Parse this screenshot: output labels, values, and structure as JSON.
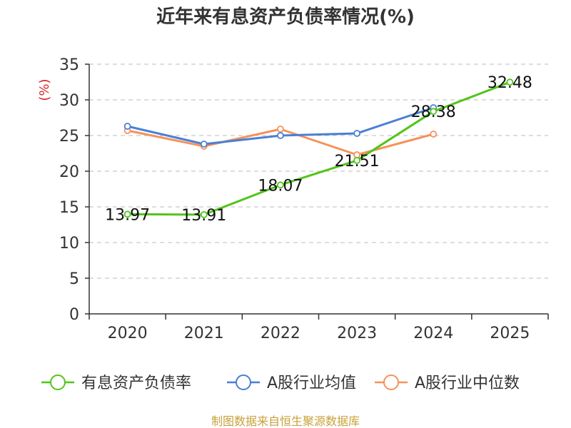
{
  "chart_data": {
    "type": "line",
    "title": "近年来有息资产负债率情况(%)",
    "xlabel": "",
    "ylabel": "(%)",
    "categories": [
      "2020",
      "2021",
      "2022",
      "2023",
      "2024",
      "2025"
    ],
    "ylim": [
      0,
      35
    ],
    "yticks": [
      0,
      5,
      10,
      15,
      20,
      25,
      30,
      35
    ],
    "grid": true,
    "legend_position": "bottom",
    "series": [
      {
        "name": "有息资产负债率",
        "color": "#52c41a",
        "values": [
          13.97,
          13.91,
          18.07,
          21.51,
          28.38,
          32.48
        ],
        "labels": [
          "13.97",
          "13.91",
          "18.07",
          "21.51",
          "28.38",
          "32.48"
        ]
      },
      {
        "name": "A股行业均值",
        "color": "#4a7fd6",
        "values": [
          26.3,
          23.8,
          25.0,
          25.3,
          28.9,
          null
        ]
      },
      {
        "name": "A股行业中位数",
        "color": "#f5925a",
        "values": [
          25.7,
          23.5,
          25.9,
          22.3,
          25.2,
          null
        ]
      }
    ],
    "source": "制图数据来自恒生聚源数据库"
  }
}
